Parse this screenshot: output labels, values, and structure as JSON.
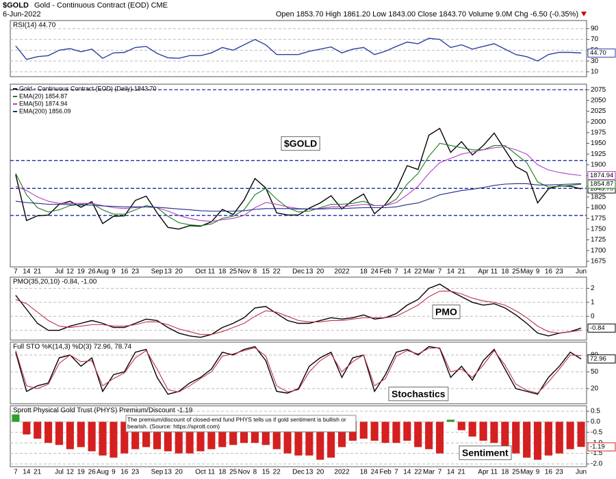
{
  "header": {
    "symbol": "$GOLD",
    "name": "Gold - Continuous Contract (EOD) CME",
    "date": "6-Jun-2022",
    "quote": "Open 1853.70  High 1861.20  Low 1843.00  Close 1843.70  Volume 9.0M  Chg -6.50 (-0.35%)"
  },
  "chart_data": [
    {
      "type": "line",
      "title": "RSI(14) 44.70",
      "ylim": [
        1,
        105
      ],
      "yticks": [
        10,
        30,
        50,
        70,
        90
      ],
      "grid": true,
      "series": [
        {
          "color": "#2b3f9e",
          "last_value_box": true,
          "values": [
            58,
            33,
            38,
            40,
            50,
            53,
            47,
            52,
            35,
            45,
            46,
            55,
            57,
            44,
            36,
            35,
            40,
            40,
            45,
            55,
            50,
            60,
            70,
            60,
            42,
            42,
            42,
            48,
            52,
            56,
            45,
            52,
            55,
            42,
            48,
            57,
            65,
            62,
            72,
            70,
            55,
            60,
            52,
            57,
            62,
            52,
            42,
            38,
            30,
            42,
            46,
            46,
            44.7
          ],
          "value_labels": [
            null,
            null,
            null,
            null,
            null,
            null,
            null,
            null,
            null,
            null,
            null,
            null,
            null,
            null,
            null,
            null,
            null,
            null,
            null,
            null,
            null,
            null,
            null,
            null,
            null,
            null,
            null,
            null,
            null,
            null,
            null,
            null,
            null,
            null,
            null,
            null,
            null,
            null,
            null,
            null,
            null,
            null,
            null,
            null,
            null,
            null,
            null,
            null,
            null,
            null,
            null,
            null,
            "44.70"
          ]
        }
      ]
    },
    {
      "type": "line",
      "annotation": "$GOLD",
      "ylim": [
        1662,
        2088
      ],
      "yticks": [
        1675,
        1700,
        1725,
        1750,
        1775,
        1800,
        1825,
        1850,
        1875,
        1900,
        1925,
        1950,
        1975,
        2000,
        2025,
        2050,
        2075
      ],
      "levels": [
        2075,
        1910,
        1845,
        1782
      ],
      "grid": false,
      "categories": [
        "7",
        "14",
        "21",
        null,
        "Jul",
        "12",
        "19",
        "26",
        "Aug",
        "9",
        "16",
        "23",
        null,
        "Sep",
        "13",
        "20",
        null,
        "Oct",
        "11",
        "18",
        "25",
        "Nov",
        "8",
        "15",
        "22",
        null,
        "Dec",
        "13",
        "20",
        null,
        "2022",
        null,
        "18",
        "24",
        "Feb",
        "7",
        "14",
        "22",
        "Mar",
        "7",
        "14",
        "21",
        null,
        "Apr",
        "11",
        "18",
        "25",
        "May",
        "9",
        "16",
        "23",
        null,
        "Jun"
      ],
      "series": [
        {
          "name": "Gold - Continuous Contract (EOD) (Daily) 1843.70",
          "color": "#000000",
          "last_value_box": true,
          "values": [
            1877,
            1770,
            1781,
            1783,
            1808,
            1815,
            1801,
            1814,
            1763,
            1780,
            1781,
            1817,
            1827,
            1788,
            1754,
            1750,
            1758,
            1757,
            1767,
            1796,
            1784,
            1818,
            1868,
            1846,
            1788,
            1783,
            1783,
            1799,
            1811,
            1828,
            1797,
            1817,
            1832,
            1786,
            1808,
            1842,
            1898,
            1889,
            1969,
            1985,
            1929,
            1954,
            1923,
            1945,
            1974,
            1935,
            1896,
            1882,
            1811,
            1844,
            1851,
            1850,
            1843.7
          ],
          "value_labels": [
            null,
            null,
            null,
            null,
            null,
            null,
            null,
            null,
            null,
            null,
            null,
            null,
            null,
            null,
            null,
            null,
            null,
            null,
            null,
            null,
            null,
            null,
            null,
            null,
            null,
            null,
            null,
            null,
            null,
            null,
            null,
            null,
            null,
            null,
            null,
            null,
            null,
            null,
            null,
            null,
            null,
            null,
            null,
            null,
            null,
            null,
            null,
            null,
            null,
            null,
            null,
            null,
            "1843.70"
          ]
        },
        {
          "name": "EMA(20) 1854.87",
          "color": "#1a7a1a",
          "last_value_box": true,
          "values": [
            1880,
            1830,
            1800,
            1790,
            1795,
            1805,
            1808,
            1810,
            1795,
            1785,
            1785,
            1795,
            1805,
            1800,
            1780,
            1765,
            1760,
            1758,
            1762,
            1775,
            1780,
            1795,
            1830,
            1845,
            1820,
            1800,
            1790,
            1792,
            1800,
            1808,
            1808,
            1810,
            1815,
            1805,
            1805,
            1820,
            1855,
            1880,
            1920,
            1950,
            1945,
            1940,
            1935,
            1935,
            1945,
            1945,
            1925,
            1905,
            1860,
            1848,
            1850,
            1852,
            1854.87
          ]
        },
        {
          "name": "EMA(50) 1874.94",
          "color": "#b03cc0",
          "last_value_box": true,
          "values": [
            1850,
            1840,
            1825,
            1815,
            1810,
            1810,
            1810,
            1810,
            1805,
            1800,
            1798,
            1800,
            1802,
            1800,
            1792,
            1782,
            1775,
            1770,
            1768,
            1772,
            1775,
            1782,
            1800,
            1812,
            1808,
            1802,
            1798,
            1797,
            1798,
            1802,
            1802,
            1805,
            1808,
            1805,
            1805,
            1812,
            1830,
            1850,
            1880,
            1905,
            1915,
            1925,
            1930,
            1935,
            1940,
            1942,
            1935,
            1925,
            1900,
            1888,
            1882,
            1878,
            1874.94
          ]
        },
        {
          "name": "EMA(200) 1856.09",
          "color": "#1c2a80",
          "values": [
            1815,
            1812,
            1810,
            1808,
            1808,
            1807,
            1806,
            1806,
            1804,
            1803,
            1802,
            1802,
            1802,
            1801,
            1799,
            1797,
            1795,
            1793,
            1792,
            1792,
            1792,
            1793,
            1796,
            1798,
            1798,
            1798,
            1797,
            1797,
            1797,
            1798,
            1798,
            1799,
            1800,
            1800,
            1800,
            1802,
            1807,
            1811,
            1820,
            1830,
            1835,
            1840,
            1843,
            1847,
            1852,
            1855,
            1856,
            1856,
            1853,
            1853,
            1854,
            1855,
            1856.09
          ]
        }
      ]
    },
    {
      "type": "line",
      "title": "PMO(35,20,10) -0.84, -1.00",
      "annotation": "PMO",
      "ylim": [
        -1.7,
        2.8
      ],
      "yticks": [
        2,
        1,
        0,
        -1
      ],
      "grid": true,
      "series": [
        {
          "color": "#000000",
          "last_value_box": true,
          "values": [
            1.5,
            0.5,
            -0.5,
            -1.0,
            -1.0,
            -0.7,
            -0.5,
            -0.3,
            -0.5,
            -0.8,
            -0.8,
            -0.5,
            -0.2,
            -0.3,
            -0.8,
            -1.2,
            -1.4,
            -1.5,
            -1.3,
            -0.8,
            -0.5,
            -0.1,
            0.6,
            0.7,
            0.2,
            -0.3,
            -0.5,
            -0.5,
            -0.3,
            -0.1,
            -0.2,
            -0.1,
            0.1,
            -0.2,
            -0.1,
            0.2,
            0.8,
            1.2,
            2.0,
            2.3,
            1.8,
            1.4,
            1.0,
            0.8,
            0.9,
            0.6,
            0.1,
            -0.5,
            -1.2,
            -1.4,
            -1.2,
            -1.1,
            -0.84
          ]
        },
        {
          "color": "#c0304a",
          "values": [
            1.2,
            0.9,
            0.3,
            -0.3,
            -0.7,
            -0.8,
            -0.7,
            -0.6,
            -0.6,
            -0.7,
            -0.7,
            -0.6,
            -0.4,
            -0.4,
            -0.6,
            -0.9,
            -1.1,
            -1.3,
            -1.3,
            -1.1,
            -0.8,
            -0.5,
            0.0,
            0.4,
            0.3,
            0.0,
            -0.3,
            -0.4,
            -0.4,
            -0.3,
            -0.3,
            -0.2,
            -0.1,
            -0.1,
            -0.1,
            0.0,
            0.4,
            0.8,
            1.4,
            1.8,
            1.8,
            1.6,
            1.3,
            1.1,
            1.0,
            0.8,
            0.4,
            -0.1,
            -0.7,
            -1.1,
            -1.2,
            -1.1,
            -1.0
          ]
        }
      ]
    },
    {
      "type": "line",
      "title": "Full STO %K(14,3) %D(3) 72.96, 78.74",
      "annotation": "Stochastics",
      "ylim": [
        -7,
        103
      ],
      "yticks": [
        80,
        50,
        20
      ],
      "grid": true,
      "series": [
        {
          "color": "#000000",
          "last_value_box": true,
          "values": [
            85,
            15,
            25,
            30,
            75,
            80,
            60,
            75,
            15,
            45,
            50,
            85,
            90,
            40,
            10,
            15,
            30,
            40,
            55,
            85,
            80,
            90,
            95,
            70,
            15,
            12,
            20,
            60,
            75,
            85,
            40,
            75,
            80,
            15,
            45,
            85,
            90,
            80,
            95,
            92,
            40,
            60,
            35,
            70,
            90,
            55,
            20,
            15,
            10,
            40,
            60,
            85,
            72.96
          ]
        },
        {
          "color": "#c0304a",
          "values": [
            88,
            25,
            20,
            28,
            65,
            80,
            68,
            70,
            25,
            38,
            48,
            75,
            88,
            55,
            18,
            14,
            25,
            38,
            50,
            78,
            82,
            88,
            93,
            78,
            25,
            14,
            18,
            50,
            70,
            82,
            50,
            68,
            80,
            25,
            38,
            78,
            88,
            82,
            92,
            93,
            50,
            55,
            40,
            62,
            88,
            62,
            28,
            17,
            12,
            32,
            55,
            80,
            78.74
          ]
        }
      ]
    },
    {
      "type": "bar",
      "title": "Sprott Physical Gold Trust (PHYS) Premium/Discount -1.19",
      "annotation": "Sentiment",
      "note": "The premium/discount of closed-end fund PHYS tells us if gold sentiment is bullish or bearish. (Source: https://sprott.com)",
      "ylim": [
        -2.13,
        0.76
      ],
      "yticks": [
        0.5,
        {
          "value": 0,
          "label": "0.0"
        },
        -0.5,
        {
          "value": -1,
          "label": "-1.0"
        },
        -1.5,
        {
          "value": -2,
          "label": "-2.0"
        }
      ],
      "grid": true,
      "positive_color": "#2e9e2e",
      "negative_color": "#d42020",
      "series": [
        {
          "last_value_box": true,
          "values": [
            0.35,
            -0.6,
            -0.8,
            -1.0,
            -1.1,
            -1.3,
            -1.2,
            -1.4,
            -1.6,
            -1.7,
            -1.5,
            -1.3,
            -1.2,
            -1.3,
            -1.4,
            -1.5,
            -1.5,
            -1.4,
            -1.3,
            -1.2,
            -1.1,
            -1.0,
            -1.0,
            -1.1,
            -1.3,
            -1.5,
            -1.6,
            -1.6,
            -1.8,
            -1.7,
            -1.2,
            -0.9,
            -0.8,
            -0.9,
            -1.0,
            -1.0,
            -0.9,
            -1.2,
            -1.3,
            -1.5,
            0.1,
            -0.4,
            -0.7,
            -0.9,
            -1.0,
            -1.3,
            -1.5,
            -1.7,
            -1.8,
            -1.6,
            -1.5,
            -1.3,
            -1.19
          ]
        }
      ]
    }
  ]
}
